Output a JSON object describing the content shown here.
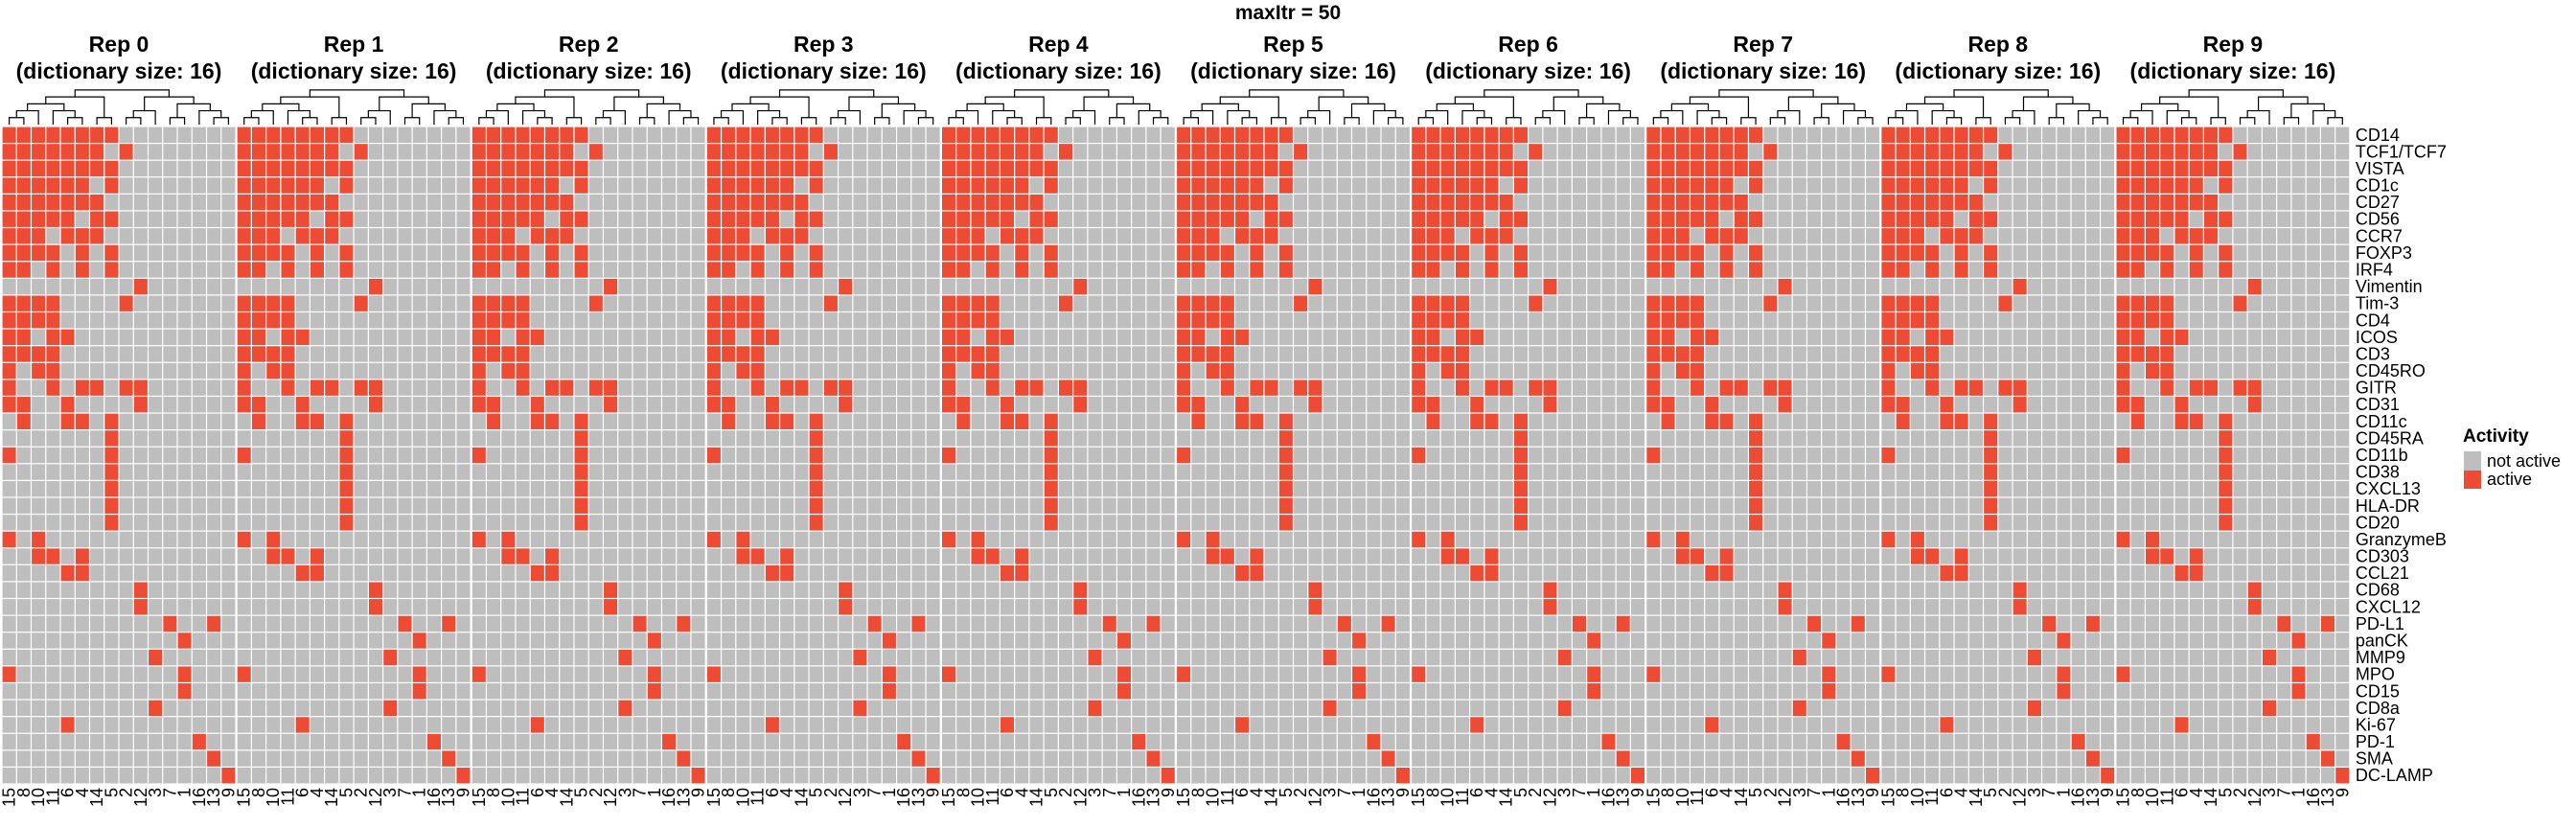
{
  "chart_data": {
    "type": "heatmap",
    "title": "maxItr = 50",
    "panels": [
      {
        "title": "Rep 0",
        "subtitle": "(dictionary size: 16)"
      },
      {
        "title": "Rep 1",
        "subtitle": "(dictionary size: 16)"
      },
      {
        "title": "Rep 2",
        "subtitle": "(dictionary size: 16)"
      },
      {
        "title": "Rep 3",
        "subtitle": "(dictionary size: 16)"
      },
      {
        "title": "Rep 4",
        "subtitle": "(dictionary size: 16)"
      },
      {
        "title": "Rep 5",
        "subtitle": "(dictionary size: 16)"
      },
      {
        "title": "Rep 6",
        "subtitle": "(dictionary size: 16)"
      },
      {
        "title": "Rep 7",
        "subtitle": "(dictionary size: 16)"
      },
      {
        "title": "Rep 8",
        "subtitle": "(dictionary size: 16)"
      },
      {
        "title": "Rep 9",
        "subtitle": "(dictionary size: 16)"
      }
    ],
    "columns": [
      "15",
      "8",
      "10",
      "11",
      "6",
      "4",
      "14",
      "5",
      "2",
      "12",
      "3",
      "7",
      "1",
      "16",
      "13",
      "9"
    ],
    "rows": [
      "CD14",
      "TCF1/TCF7",
      "VISTA",
      "CD1c",
      "CD27",
      "CD56",
      "CCR7",
      "FOXP3",
      "IRF4",
      "Vimentin",
      "Tim-3",
      "CD4",
      "ICOS",
      "CD3",
      "CD45RO",
      "GITR",
      "CD31",
      "CD11c",
      "CD45RA",
      "CD11b",
      "CD38",
      "CXCL13",
      "HLA-DR",
      "CD20",
      "GranzymeB",
      "CD303",
      "CCL21",
      "CD68",
      "CXCL12",
      "PD-L1",
      "panCK",
      "MMP9",
      "MPO",
      "CD15",
      "CD8a",
      "Ki-67",
      "PD-1",
      "SMA",
      "DC-LAMP"
    ],
    "matrix": [
      "1111111100000000",
      "1111111010000000",
      "1111111100000000",
      "1111110100000000",
      "1111111000000000",
      "1111101100000000",
      "1110111000000000",
      "1111010100000000",
      "1101010100000000",
      "0000000001000000",
      "1111000010000000",
      "1111000000000000",
      "1101100000000000",
      "1111000000000000",
      "1011000000000000",
      "1001011011000000",
      "1100100001000000",
      "0100110100000000",
      "0000000100000000",
      "1000000100000000",
      "0000000100000000",
      "0000000100000000",
      "0000000100000000",
      "0000000100000000",
      "1010000000000000",
      "0011010000000000",
      "0000110000000000",
      "0000000001000000",
      "0000000001000000",
      "0000000000010010",
      "0000000000001000",
      "0000000000100000",
      "1000000000001000",
      "0000000000001000",
      "0000000000100000",
      "0000100000000000",
      "0000000000000100",
      "0000000000000010",
      "0000000000000001"
    ],
    "legend": {
      "title": "Activity",
      "placement": "right",
      "items": [
        {
          "label": "not active",
          "color": "#bebebe"
        },
        {
          "label": "active",
          "color": "#ee4b35"
        }
      ]
    },
    "grid_line_color": "#ffffff"
  }
}
